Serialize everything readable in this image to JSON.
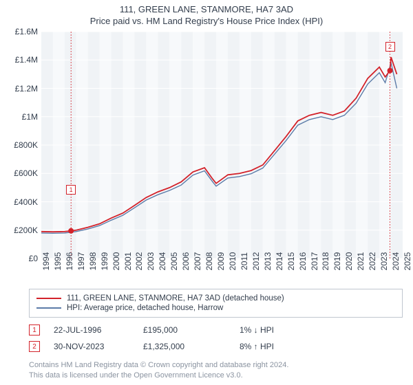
{
  "title": "111, GREEN LANE, STANMORE, HA7 3AD",
  "subtitle": "Price paid vs. HM Land Registry's House Price Index (HPI)",
  "chart": {
    "type": "line",
    "background_color": "#ffffff",
    "plot_bg_color": "#f0f3f6",
    "plot_bg_alt_color": "#f7f9fb",
    "grid_color": "#ffffff",
    "axis_text_color": "#323d4c",
    "ylim": [
      0,
      1600000
    ],
    "ytick_step": 200000,
    "y_labels": [
      "£0",
      "£200K",
      "£400K",
      "£600K",
      "£800K",
      "£1M",
      "£1.2M",
      "£1.4M",
      "£1.6M"
    ],
    "xlim": [
      1994,
      2025
    ],
    "x_labels": [
      "1994",
      "1995",
      "1996",
      "1997",
      "1998",
      "1999",
      "2000",
      "2001",
      "2002",
      "2003",
      "2004",
      "2005",
      "2006",
      "2007",
      "2008",
      "2009",
      "2010",
      "2011",
      "2012",
      "2013",
      "2014",
      "2015",
      "2016",
      "2017",
      "2018",
      "2019",
      "2020",
      "2021",
      "2022",
      "2023",
      "2024",
      "2025"
    ],
    "series": [
      {
        "name": "property",
        "label": "111, GREEN LANE, STANMORE, HA7 3AD (detached house)",
        "color": "#d3222a",
        "line_width": 1.8,
        "points": [
          [
            1994,
            190000
          ],
          [
            1995,
            188000
          ],
          [
            1996,
            190000
          ],
          [
            1996.55,
            195000
          ],
          [
            1997,
            200000
          ],
          [
            1998,
            220000
          ],
          [
            1999,
            245000
          ],
          [
            2000,
            285000
          ],
          [
            2001,
            320000
          ],
          [
            2002,
            375000
          ],
          [
            2003,
            430000
          ],
          [
            2004,
            470000
          ],
          [
            2005,
            500000
          ],
          [
            2006,
            540000
          ],
          [
            2007,
            610000
          ],
          [
            2008,
            640000
          ],
          [
            2008.7,
            560000
          ],
          [
            2009,
            530000
          ],
          [
            2010,
            590000
          ],
          [
            2011,
            600000
          ],
          [
            2012,
            620000
          ],
          [
            2013,
            660000
          ],
          [
            2014,
            760000
          ],
          [
            2015,
            860000
          ],
          [
            2016,
            970000
          ],
          [
            2017,
            1010000
          ],
          [
            2018,
            1030000
          ],
          [
            2019,
            1010000
          ],
          [
            2020,
            1040000
          ],
          [
            2021,
            1130000
          ],
          [
            2022,
            1270000
          ],
          [
            2023,
            1350000
          ],
          [
            2023.5,
            1280000
          ],
          [
            2023.91,
            1325000
          ],
          [
            2024,
            1420000
          ],
          [
            2024.5,
            1300000
          ]
        ]
      },
      {
        "name": "hpi",
        "label": "HPI: Average price, detached house, Harrow",
        "color": "#5b7ba8",
        "line_width": 1.4,
        "points": [
          [
            1994,
            180000
          ],
          [
            1995,
            178000
          ],
          [
            1996,
            180000
          ],
          [
            1997,
            190000
          ],
          [
            1998,
            208000
          ],
          [
            1999,
            232000
          ],
          [
            2000,
            270000
          ],
          [
            2001,
            305000
          ],
          [
            2002,
            358000
          ],
          [
            2003,
            412000
          ],
          [
            2004,
            450000
          ],
          [
            2005,
            480000
          ],
          [
            2006,
            518000
          ],
          [
            2007,
            588000
          ],
          [
            2008,
            618000
          ],
          [
            2008.7,
            540000
          ],
          [
            2009,
            510000
          ],
          [
            2010,
            568000
          ],
          [
            2011,
            578000
          ],
          [
            2012,
            598000
          ],
          [
            2013,
            638000
          ],
          [
            2014,
            735000
          ],
          [
            2015,
            832000
          ],
          [
            2016,
            940000
          ],
          [
            2017,
            980000
          ],
          [
            2018,
            1000000
          ],
          [
            2019,
            980000
          ],
          [
            2020,
            1010000
          ],
          [
            2021,
            1095000
          ],
          [
            2022,
            1230000
          ],
          [
            2023,
            1310000
          ],
          [
            2023.5,
            1240000
          ],
          [
            2024,
            1380000
          ],
          [
            2024.5,
            1200000
          ]
        ]
      }
    ],
    "markers": [
      {
        "id": "1",
        "x": 1996.55,
        "y": 195000,
        "box_y_offset": -60
      },
      {
        "id": "2",
        "x": 2023.91,
        "y": 1325000,
        "box_y_offset": -35
      }
    ],
    "marker_dot_color": "#d3222a",
    "marker_dot_radius": 4
  },
  "legend": {
    "items": [
      {
        "color": "#d3222a",
        "label": "111, GREEN LANE, STANMORE, HA7 3AD (detached house)"
      },
      {
        "color": "#5b7ba8",
        "label": "HPI: Average price, detached house, Harrow"
      }
    ]
  },
  "transactions": [
    {
      "marker": "1",
      "date": "22-JUL-1996",
      "price": "£195,000",
      "hpi_delta": "1% ↓ HPI"
    },
    {
      "marker": "2",
      "date": "30-NOV-2023",
      "price": "£1,325,000",
      "hpi_delta": "8% ↑ HPI"
    }
  ],
  "footer_line1": "Contains HM Land Registry data © Crown copyright and database right 2024.",
  "footer_line2": "This data is licensed under the Open Government Licence v3.0."
}
